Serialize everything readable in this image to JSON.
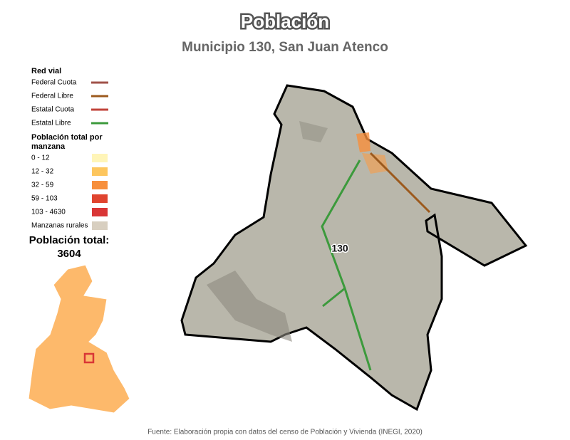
{
  "header": {
    "title": "Población",
    "subtitle": "Municipio 130, San Juan Atenco"
  },
  "legend": {
    "roads_title": "Red vial",
    "roads": [
      {
        "label": "Federal Cuota",
        "color": "#a0524a"
      },
      {
        "label": "Federal Libre",
        "color": "#9c5a1e"
      },
      {
        "label": "Estatal Cuota",
        "color": "#c0433a"
      },
      {
        "label": "Estatal Libre",
        "color": "#3c9a3c"
      }
    ],
    "population_title": "Población total por manzana",
    "population": [
      {
        "label": "0 - 12",
        "color": "#fff5b8"
      },
      {
        "label": "12 - 32",
        "color": "#fdc65e"
      },
      {
        "label": "32 - 59",
        "color": "#f78f3c"
      },
      {
        "label": "59 - 103",
        "color": "#e0442f"
      },
      {
        "label": "103 - 4630",
        "color": "#d93636"
      },
      {
        "label": "Manzanas rurales",
        "color": "#d8cfc0"
      }
    ]
  },
  "total": {
    "label": "Población total:",
    "value": "3604"
  },
  "map": {
    "municipality_label": "130"
  },
  "source": "Fuente: Elaboración propia con datos del censo de Población y Vivienda (INEGI, 2020)"
}
